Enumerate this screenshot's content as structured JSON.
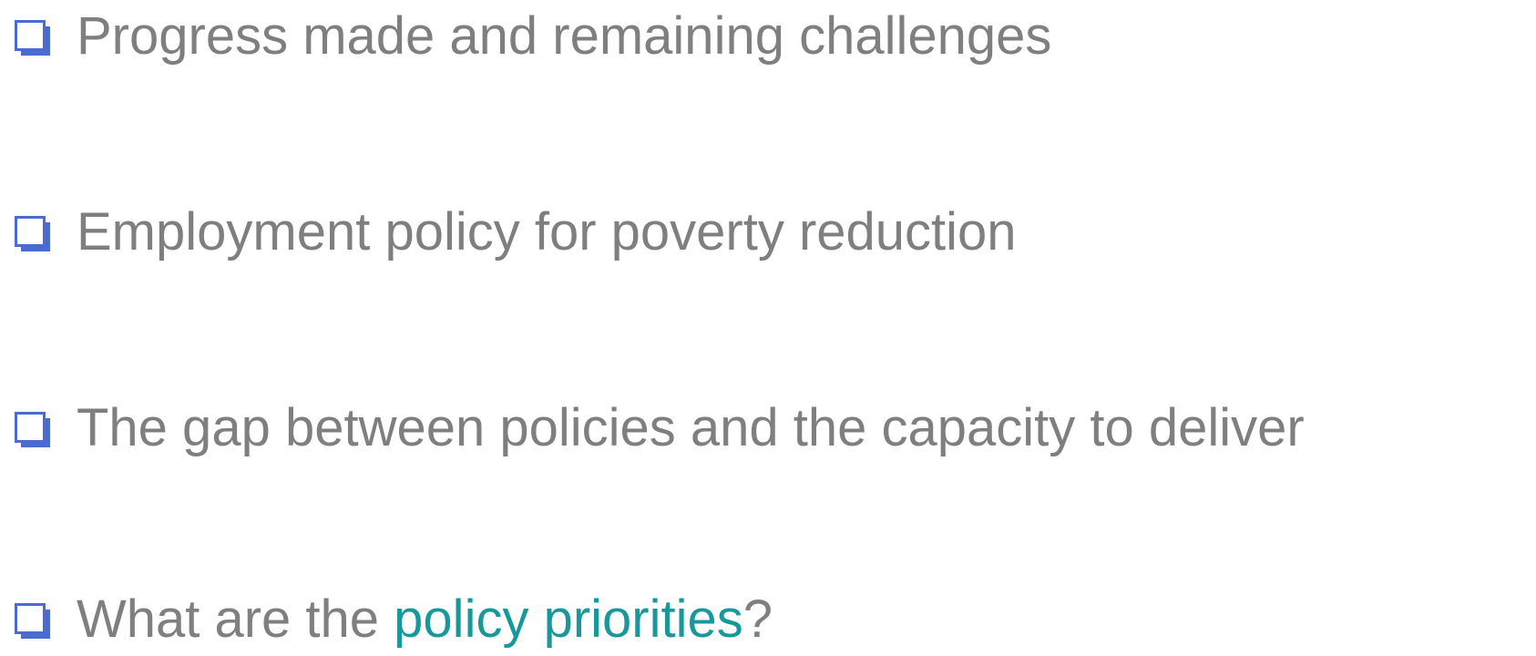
{
  "text_color": "#7f7f7f",
  "bullet_color": "#4a6bd0",
  "items": [
    {
      "parts": [
        {
          "text": "Progress made and remaining challenges"
        }
      ]
    },
    {
      "parts": [
        {
          "text": "Employment policy for poverty reduction"
        }
      ]
    },
    {
      "parts": [
        {
          "text": "The gap between policies and the capacity to deliver"
        }
      ]
    },
    {
      "parts": [
        {
          "text": "What are the "
        },
        {
          "text": "policy priorities",
          "color": "#17999b"
        },
        {
          "text": "?"
        }
      ]
    }
  ]
}
